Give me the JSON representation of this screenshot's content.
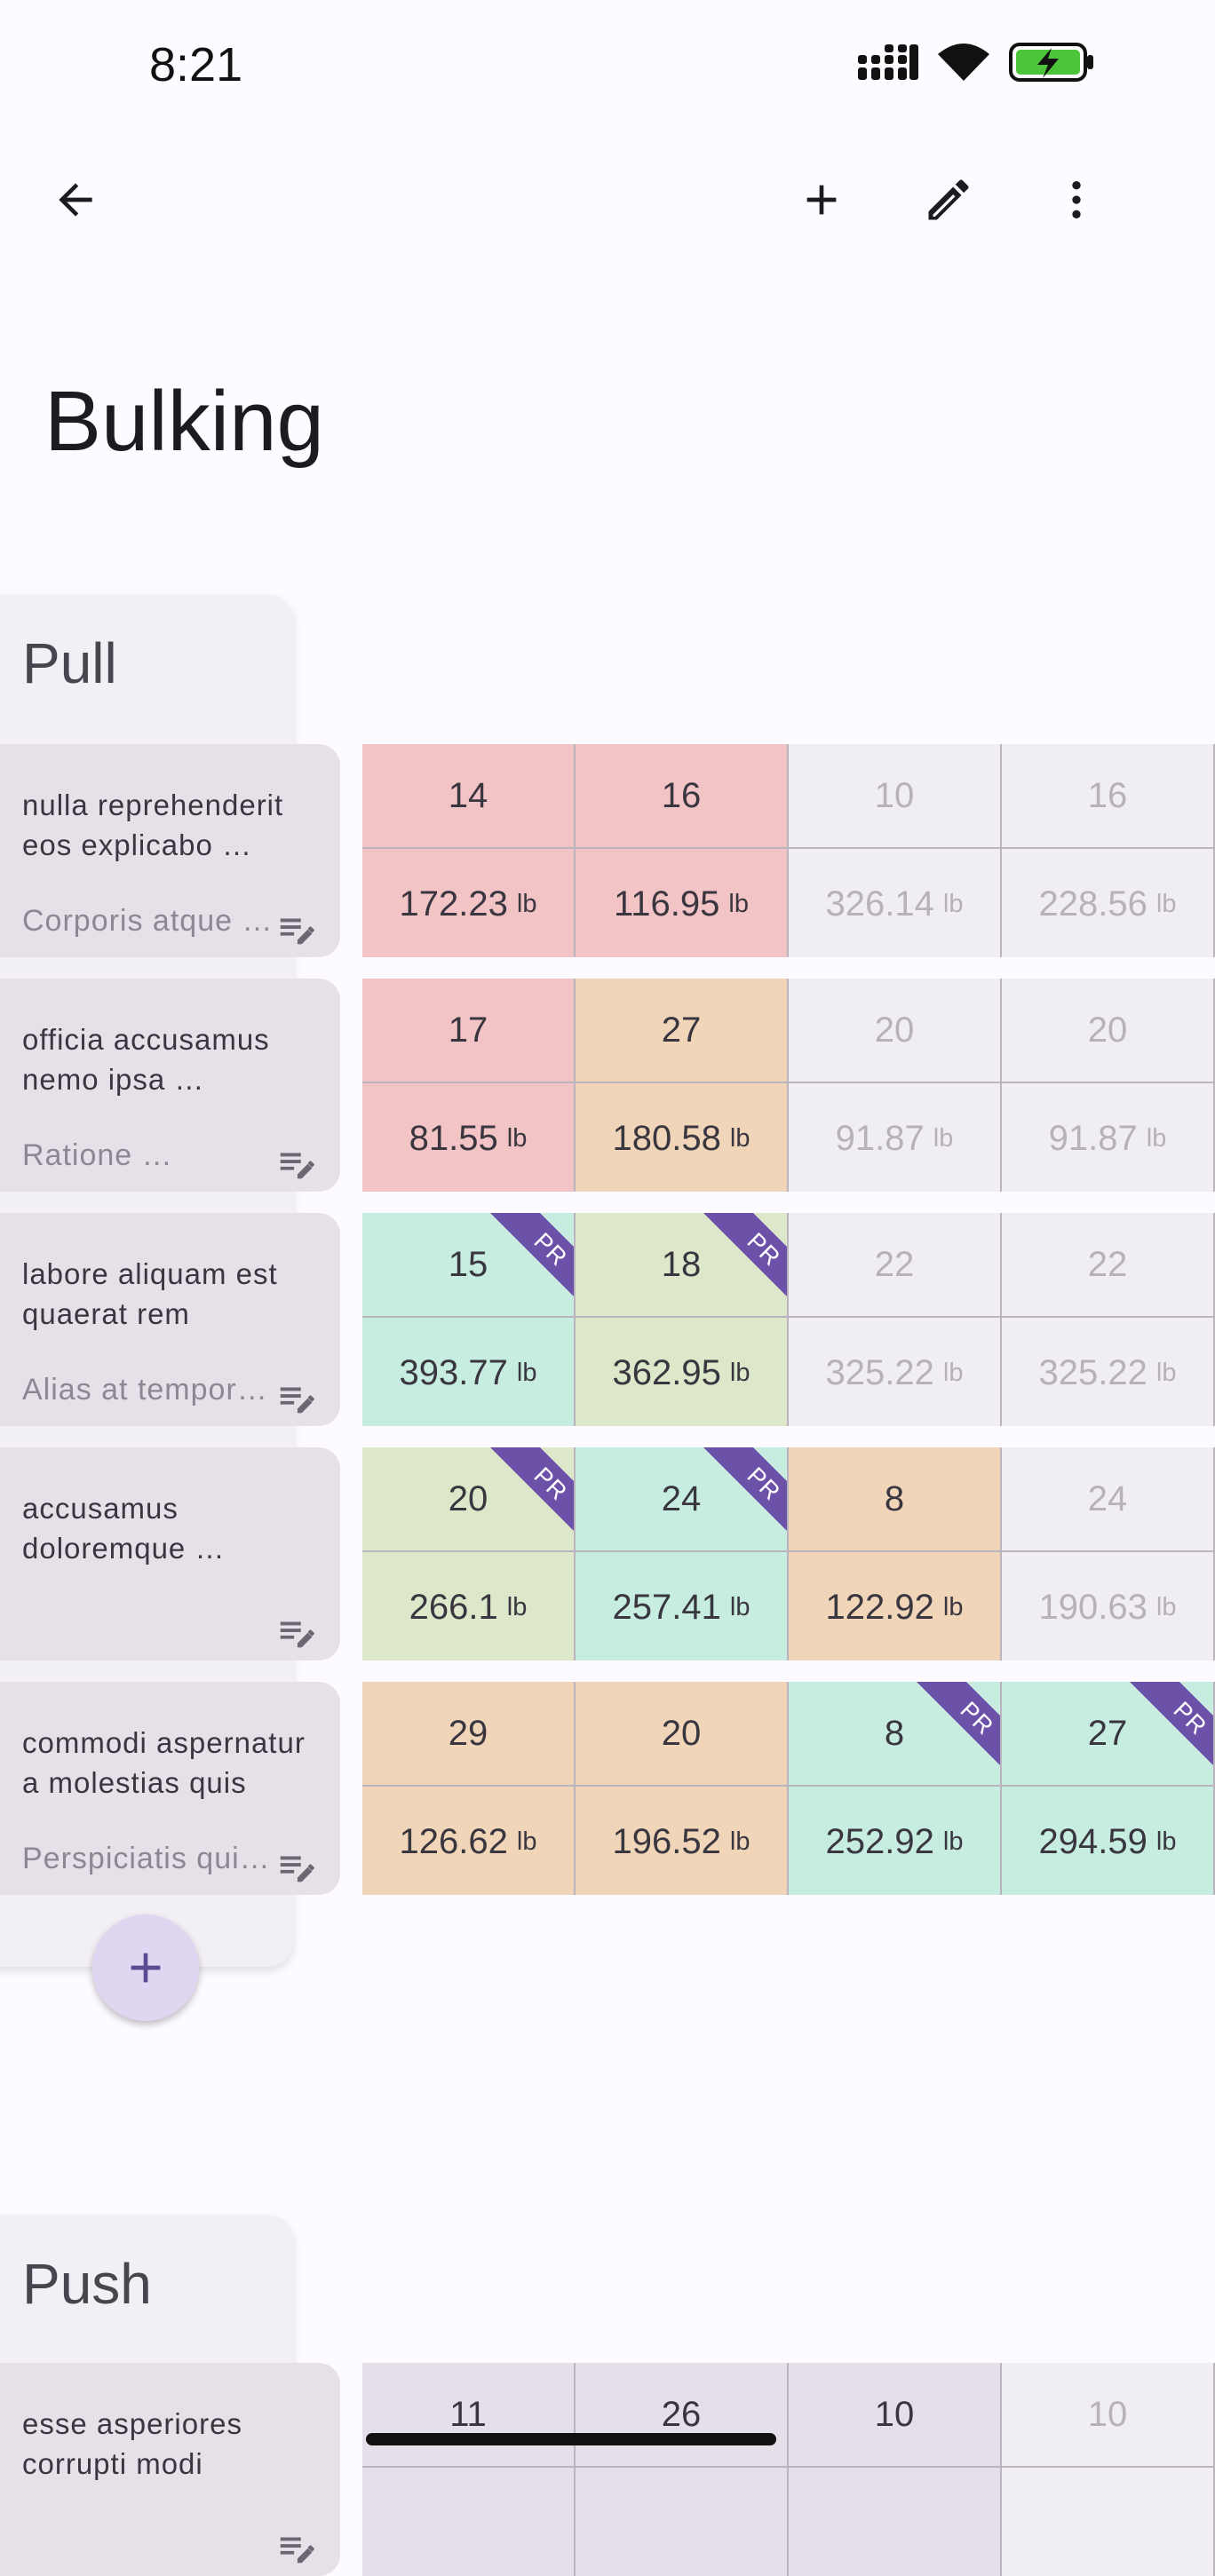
{
  "status": {
    "time": "8:21"
  },
  "app_bar": {
    "icons": [
      "back-arrow-icon",
      "plus-icon",
      "edit-pencil-icon",
      "more-vert-icon"
    ]
  },
  "title": "Bulking",
  "colors": {
    "red": "#f2c4c6",
    "orange": "#f0d5b8",
    "teal": "#c6ede0",
    "green": "#dce8c9",
    "faded": "#f1eef3",
    "gray": "#e4dfe8",
    "pr": "#6b52a8"
  },
  "workouts": [
    {
      "name": "Pull",
      "exercises": [
        {
          "name": "nulla reprehenderit eos explicabo …",
          "note": "Corporis atque …",
          "sets": [
            {
              "reps": "14",
              "weight": "172.23",
              "unit": "lb",
              "color": "red",
              "pr": false
            },
            {
              "reps": "16",
              "weight": "116.95",
              "unit": "lb",
              "color": "red",
              "pr": false
            },
            {
              "reps": "10",
              "weight": "326.14",
              "unit": "lb",
              "color": "faded",
              "pr": false
            },
            {
              "reps": "16",
              "weight": "228.56",
              "unit": "lb",
              "color": "faded",
              "pr": false
            }
          ]
        },
        {
          "name": "officia accusamus nemo ipsa …",
          "note": "Ratione …",
          "sets": [
            {
              "reps": "17",
              "weight": "81.55",
              "unit": "lb",
              "color": "red",
              "pr": false
            },
            {
              "reps": "27",
              "weight": "180.58",
              "unit": "lb",
              "color": "orange",
              "pr": false
            },
            {
              "reps": "20",
              "weight": "91.87",
              "unit": "lb",
              "color": "faded",
              "pr": false
            },
            {
              "reps": "20",
              "weight": "91.87",
              "unit": "lb",
              "color": "faded",
              "pr": false
            }
          ]
        },
        {
          "name": "labore aliquam est quaerat rem",
          "note": "Alias at tempor…",
          "sets": [
            {
              "reps": "15",
              "weight": "393.77",
              "unit": "lb",
              "color": "teal",
              "pr": true
            },
            {
              "reps": "18",
              "weight": "362.95",
              "unit": "lb",
              "color": "green",
              "pr": true
            },
            {
              "reps": "22",
              "weight": "325.22",
              "unit": "lb",
              "color": "faded",
              "pr": false
            },
            {
              "reps": "22",
              "weight": "325.22",
              "unit": "lb",
              "color": "faded",
              "pr": false
            }
          ]
        },
        {
          "name": "accusamus doloremque …",
          "note": "",
          "sets": [
            {
              "reps": "20",
              "weight": "266.1",
              "unit": "lb",
              "color": "green",
              "pr": true
            },
            {
              "reps": "24",
              "weight": "257.41",
              "unit": "lb",
              "color": "teal",
              "pr": true
            },
            {
              "reps": "8",
              "weight": "122.92",
              "unit": "lb",
              "color": "orange",
              "pr": false
            },
            {
              "reps": "24",
              "weight": "190.63",
              "unit": "lb",
              "color": "faded",
              "pr": false
            }
          ]
        },
        {
          "name": "commodi aspernatur a molestias quis",
          "note": "Perspiciatis qui…",
          "sets": [
            {
              "reps": "29",
              "weight": "126.62",
              "unit": "lb",
              "color": "orange",
              "pr": false
            },
            {
              "reps": "20",
              "weight": "196.52",
              "unit": "lb",
              "color": "orange",
              "pr": false
            },
            {
              "reps": "8",
              "weight": "252.92",
              "unit": "lb",
              "color": "teal",
              "pr": true
            },
            {
              "reps": "27",
              "weight": "294.59",
              "unit": "lb",
              "color": "teal",
              "pr": true
            }
          ]
        }
      ]
    },
    {
      "name": "Push",
      "exercises": [
        {
          "name": "esse asperiores corrupti modi",
          "note": "",
          "sets": [
            {
              "reps": "11",
              "weight": "",
              "unit": "",
              "color": "gray",
              "pr": false
            },
            {
              "reps": "26",
              "weight": "",
              "unit": "",
              "color": "gray",
              "pr": false
            },
            {
              "reps": "10",
              "weight": "",
              "unit": "",
              "color": "gray",
              "pr": false
            },
            {
              "reps": "10",
              "weight": "",
              "unit": "",
              "color": "faded",
              "pr": false
            }
          ]
        }
      ]
    }
  ],
  "pr_label": "PR"
}
